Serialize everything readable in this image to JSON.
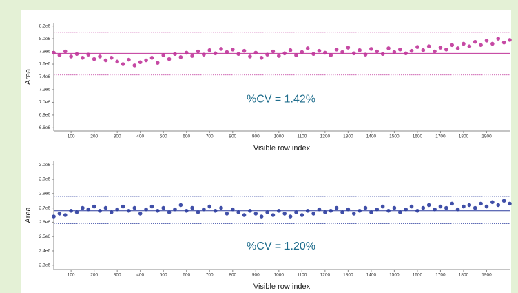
{
  "chart_data": [
    {
      "type": "scatter",
      "y_label": "Area",
      "x_label": "Visible row index",
      "annotation": "%CV = 1.42%",
      "color": "#c0359a",
      "x": [
        25,
        50,
        75,
        100,
        125,
        150,
        175,
        200,
        225,
        250,
        275,
        300,
        325,
        350,
        375,
        400,
        425,
        450,
        475,
        500,
        525,
        550,
        575,
        600,
        625,
        650,
        675,
        700,
        725,
        750,
        775,
        800,
        825,
        850,
        875,
        900,
        925,
        950,
        975,
        1000,
        1025,
        1050,
        1075,
        1100,
        1125,
        1150,
        1175,
        1200,
        1225,
        1250,
        1275,
        1300,
        1325,
        1350,
        1375,
        1400,
        1425,
        1450,
        1475,
        1500,
        1525,
        1550,
        1575,
        1600,
        1625,
        1650,
        1675,
        1700,
        1725,
        1750,
        1775,
        1800,
        1825,
        1850,
        1875,
        1900,
        1925,
        1950,
        1975,
        2000
      ],
      "values": [
        7780000,
        7740000,
        7800000,
        7720000,
        7760000,
        7700000,
        7750000,
        7680000,
        7720000,
        7660000,
        7700000,
        7640000,
        7600000,
        7670000,
        7580000,
        7630000,
        7660000,
        7700000,
        7620000,
        7740000,
        7680000,
        7760000,
        7710000,
        7780000,
        7730000,
        7800000,
        7750000,
        7820000,
        7770000,
        7840000,
        7790000,
        7830000,
        7760000,
        7810000,
        7720000,
        7780000,
        7700000,
        7750000,
        7800000,
        7730000,
        7770000,
        7820000,
        7740000,
        7790000,
        7850000,
        7760000,
        7810000,
        7780000,
        7740000,
        7830000,
        7790000,
        7860000,
        7770000,
        7820000,
        7750000,
        7840000,
        7800000,
        7760000,
        7850000,
        7790000,
        7830000,
        7770000,
        7810000,
        7870000,
        7820000,
        7880000,
        7800000,
        7860000,
        7830000,
        7900000,
        7850000,
        7920000,
        7880000,
        7950000,
        7900000,
        7970000,
        7920000,
        8000000,
        7940000,
        7980000
      ],
      "reference_lines": [
        {
          "value": 8100000,
          "style": "dotted"
        },
        {
          "value": 7770000,
          "style": "solid"
        },
        {
          "value": 7430000,
          "style": "dotted"
        }
      ],
      "xlim": [
        25,
        2000
      ],
      "xticks": [
        100,
        200,
        300,
        400,
        500,
        600,
        700,
        800,
        900,
        1000,
        1100,
        1200,
        1300,
        1400,
        1500,
        1600,
        1700,
        1800,
        1900
      ],
      "ylim": [
        6550000,
        8250000
      ],
      "yticks": [
        {
          "value": 6600000,
          "label": "6.6e6"
        },
        {
          "value": 6800000,
          "label": "6.8e6"
        },
        {
          "value": 7000000,
          "label": "7.0e6"
        },
        {
          "value": 7200000,
          "label": "7.2e6"
        },
        {
          "value": 7400000,
          "label": "7.4e6"
        },
        {
          "value": 7600000,
          "label": "7.6e6"
        },
        {
          "value": 7800000,
          "label": "7.8e6"
        },
        {
          "value": 8000000,
          "label": "8.0e6"
        },
        {
          "value": 8200000,
          "label": "8.2e6"
        }
      ]
    },
    {
      "type": "scatter",
      "y_label": "Area",
      "x_label": "Visible row index",
      "annotation": "%CV = 1.20%",
      "color": "#2b3c9e",
      "x": [
        25,
        50,
        75,
        100,
        125,
        150,
        175,
        200,
        225,
        250,
        275,
        300,
        325,
        350,
        375,
        400,
        425,
        450,
        475,
        500,
        525,
        550,
        575,
        600,
        625,
        650,
        675,
        700,
        725,
        750,
        775,
        800,
        825,
        850,
        875,
        900,
        925,
        950,
        975,
        1000,
        1025,
        1050,
        1075,
        1100,
        1125,
        1150,
        1175,
        1200,
        1225,
        1250,
        1275,
        1300,
        1325,
        1350,
        1375,
        1400,
        1425,
        1450,
        1475,
        1500,
        1525,
        1550,
        1575,
        1600,
        1625,
        1650,
        1675,
        1700,
        1725,
        1750,
        1775,
        1800,
        1825,
        1850,
        1875,
        1900,
        1925,
        1950,
        1975,
        2000
      ],
      "values": [
        2640000,
        2660000,
        2650000,
        2680000,
        2670000,
        2700000,
        2690000,
        2710000,
        2680000,
        2700000,
        2670000,
        2690000,
        2710000,
        2680000,
        2700000,
        2660000,
        2690000,
        2710000,
        2680000,
        2700000,
        2670000,
        2690000,
        2720000,
        2680000,
        2700000,
        2670000,
        2690000,
        2710000,
        2680000,
        2700000,
        2660000,
        2690000,
        2670000,
        2650000,
        2680000,
        2660000,
        2640000,
        2670000,
        2650000,
        2680000,
        2660000,
        2640000,
        2670000,
        2650000,
        2680000,
        2660000,
        2690000,
        2670000,
        2680000,
        2700000,
        2670000,
        2690000,
        2660000,
        2680000,
        2700000,
        2670000,
        2690000,
        2710000,
        2680000,
        2700000,
        2670000,
        2690000,
        2710000,
        2680000,
        2700000,
        2720000,
        2690000,
        2710000,
        2700000,
        2730000,
        2690000,
        2710000,
        2720000,
        2700000,
        2730000,
        2710000,
        2740000,
        2720000,
        2750000,
        2730000
      ],
      "reference_lines": [
        {
          "value": 2780000,
          "style": "dotted"
        },
        {
          "value": 2680000,
          "style": "solid"
        },
        {
          "value": 2590000,
          "style": "dotted"
        }
      ],
      "xlim": [
        25,
        2000
      ],
      "xticks": [
        100,
        200,
        300,
        400,
        500,
        600,
        700,
        800,
        900,
        1000,
        1100,
        1200,
        1300,
        1400,
        1500,
        1600,
        1700,
        1800,
        1900
      ],
      "ylim": [
        2270000,
        3030000
      ],
      "yticks": [
        {
          "value": 2300000,
          "label": "2.3e6"
        },
        {
          "value": 2400000,
          "label": "2.4e6"
        },
        {
          "value": 2500000,
          "label": "2.5e6"
        },
        {
          "value": 2600000,
          "label": "2.6e6"
        },
        {
          "value": 2700000,
          "label": "2.7e6"
        },
        {
          "value": 2800000,
          "label": "2.8e6"
        },
        {
          "value": 2900000,
          "label": "2.9e6"
        },
        {
          "value": 3000000,
          "label": "3.0e6"
        }
      ]
    }
  ]
}
